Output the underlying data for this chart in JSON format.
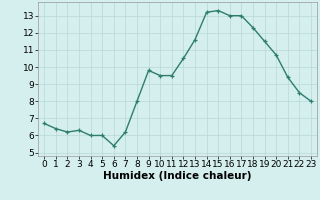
{
  "x": [
    0,
    1,
    2,
    3,
    4,
    5,
    6,
    7,
    8,
    9,
    10,
    11,
    12,
    13,
    14,
    15,
    16,
    17,
    18,
    19,
    20,
    21,
    22,
    23
  ],
  "y": [
    6.7,
    6.4,
    6.2,
    6.3,
    6.0,
    6.0,
    5.4,
    6.2,
    8.0,
    9.8,
    9.5,
    9.5,
    10.5,
    11.6,
    13.2,
    13.3,
    13.0,
    13.0,
    12.3,
    11.5,
    10.7,
    9.4,
    8.5,
    8.0
  ],
  "xlabel": "Humidex (Indice chaleur)",
  "xlim": [
    -0.5,
    23.5
  ],
  "ylim": [
    4.8,
    13.8
  ],
  "yticks": [
    5,
    6,
    7,
    8,
    9,
    10,
    11,
    12,
    13
  ],
  "xticks": [
    0,
    1,
    2,
    3,
    4,
    5,
    6,
    7,
    8,
    9,
    10,
    11,
    12,
    13,
    14,
    15,
    16,
    17,
    18,
    19,
    20,
    21,
    22,
    23
  ],
  "line_color": "#2e7d6e",
  "bg_color": "#d4efed",
  "grid_color": "#b8d8d5",
  "xlabel_fontsize": 7.5,
  "tick_fontsize": 6.5,
  "linewidth": 1.0,
  "markersize": 3.0
}
